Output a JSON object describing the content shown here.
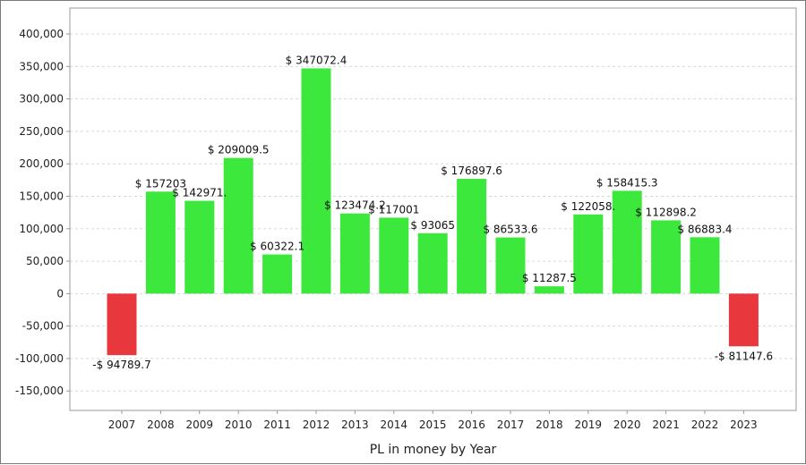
{
  "chart_data": {
    "type": "bar",
    "title": "",
    "xlabel": "PL in money by Year",
    "ylabel": "",
    "ylim": [
      -180000,
      440000
    ],
    "yticks": [
      -150000,
      -100000,
      -50000,
      0,
      50000,
      100000,
      150000,
      200000,
      250000,
      300000,
      350000,
      400000
    ],
    "ytick_labels": [
      "-150,000",
      "-100,000",
      "-50,000",
      "0",
      "50,000",
      "100,000",
      "150,000",
      "200,000",
      "250,000",
      "300,000",
      "350,000",
      "400,000"
    ],
    "grid": true,
    "categories": [
      "2007",
      "2008",
      "2009",
      "2010",
      "2011",
      "2012",
      "2013",
      "2014",
      "2015",
      "2016",
      "2017",
      "2018",
      "2019",
      "2020",
      "2021",
      "2022",
      "2023"
    ],
    "values": [
      -94789.7,
      157203,
      142971.0,
      209009.5,
      60322.1,
      347072.4,
      123474.2,
      117001,
      93065,
      176897.6,
      86533.6,
      11287.5,
      122058.0,
      158415.3,
      112898.2,
      86883.4,
      -81147.6
    ],
    "data_labels": [
      "-$ 94789.7",
      "$ 157203",
      "$ 142971.",
      "$ 209009.5",
      "$ 60322.1",
      "$ 347072.4",
      "$ 123474.2",
      "$ 117001",
      "$ 93065",
      "$ 176897.6",
      "$ 86533.6",
      "$ 11287.5",
      "$ 122058.",
      "$ 158415.3",
      "$ 112898.2",
      "$ 86883.4",
      "-$ 81147.6"
    ],
    "colors": {
      "positive": "#3de83d",
      "negative": "#e8383d",
      "grid": "#d8d8d8",
      "axis": "#9a9a9a"
    }
  }
}
